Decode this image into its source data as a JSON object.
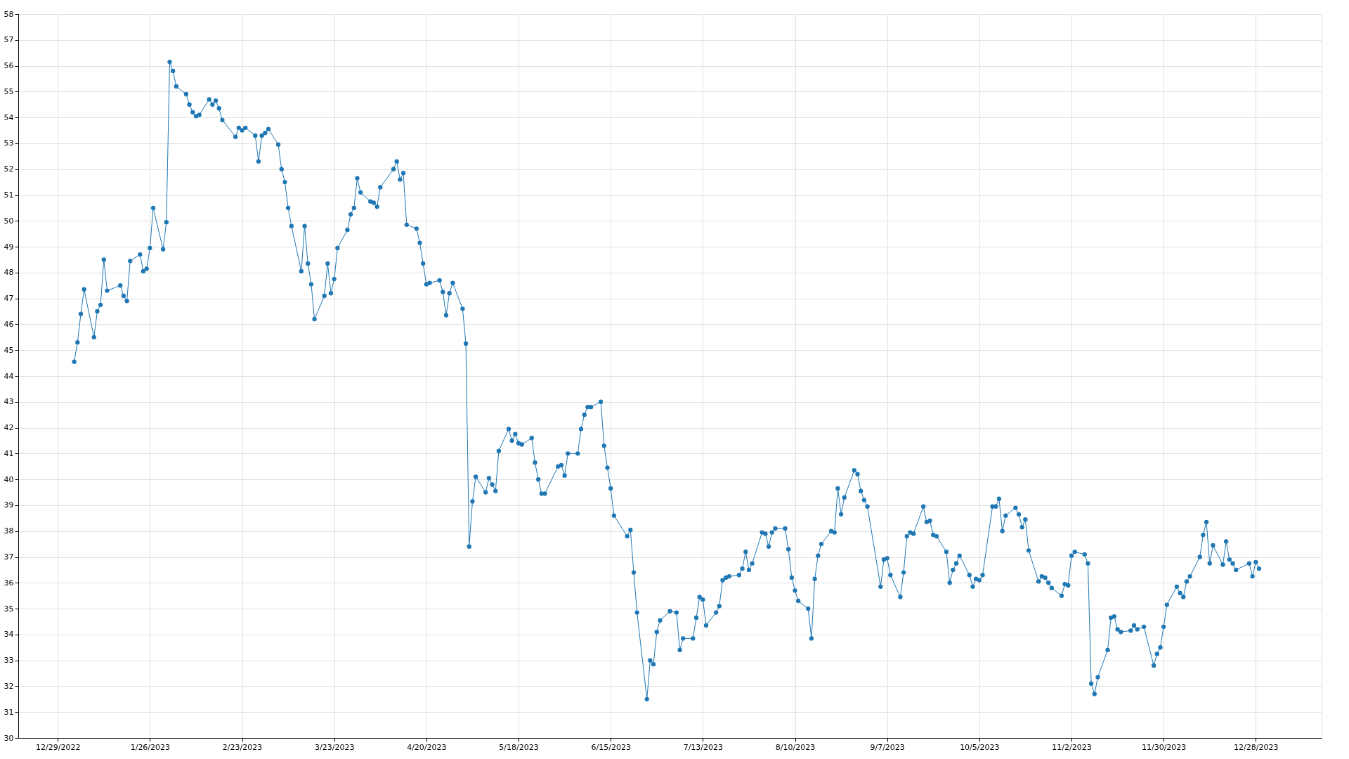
{
  "chart_data": {
    "type": "line",
    "x": [
      "2023-01-03",
      "2023-01-04",
      "2023-01-05",
      "2023-01-06",
      "2023-01-09",
      "2023-01-10",
      "2023-01-11",
      "2023-01-12",
      "2023-01-13",
      "2023-01-17",
      "2023-01-18",
      "2023-01-19",
      "2023-01-20",
      "2023-01-23",
      "2023-01-24",
      "2023-01-25",
      "2023-01-26",
      "2023-01-27",
      "2023-01-30",
      "2023-01-31",
      "2023-02-01",
      "2023-02-02",
      "2023-02-03",
      "2023-02-06",
      "2023-02-07",
      "2023-02-08",
      "2023-02-09",
      "2023-02-10",
      "2023-02-13",
      "2023-02-14",
      "2023-02-15",
      "2023-02-16",
      "2023-02-17",
      "2023-02-21",
      "2023-02-22",
      "2023-02-23",
      "2023-02-24",
      "2023-02-27",
      "2023-02-28",
      "2023-03-01",
      "2023-03-02",
      "2023-03-03",
      "2023-03-06",
      "2023-03-07",
      "2023-03-08",
      "2023-03-09",
      "2023-03-10",
      "2023-03-13",
      "2023-03-14",
      "2023-03-15",
      "2023-03-16",
      "2023-03-17",
      "2023-03-20",
      "2023-03-21",
      "2023-03-22",
      "2023-03-23",
      "2023-03-24",
      "2023-03-27",
      "2023-03-28",
      "2023-03-29",
      "2023-03-30",
      "2023-03-31",
      "2023-04-03",
      "2023-04-04",
      "2023-04-05",
      "2023-04-06",
      "2023-04-10",
      "2023-04-11",
      "2023-04-12",
      "2023-04-13",
      "2023-04-14",
      "2023-04-17",
      "2023-04-18",
      "2023-04-19",
      "2023-04-20",
      "2023-04-21",
      "2023-04-24",
      "2023-04-25",
      "2023-04-26",
      "2023-04-27",
      "2023-04-28",
      "2023-05-01",
      "2023-05-02",
      "2023-05-03",
      "2023-05-04",
      "2023-05-05",
      "2023-05-08",
      "2023-05-09",
      "2023-05-10",
      "2023-05-11",
      "2023-05-12",
      "2023-05-15",
      "2023-05-16",
      "2023-05-17",
      "2023-05-18",
      "2023-05-19",
      "2023-05-22",
      "2023-05-23",
      "2023-05-24",
      "2023-05-25",
      "2023-05-26",
      "2023-05-30",
      "2023-05-31",
      "2023-06-01",
      "2023-06-02",
      "2023-06-05",
      "2023-06-06",
      "2023-06-07",
      "2023-06-08",
      "2023-06-09",
      "2023-06-12",
      "2023-06-13",
      "2023-06-14",
      "2023-06-15",
      "2023-06-16",
      "2023-06-20",
      "2023-06-21",
      "2023-06-22",
      "2023-06-23",
      "2023-06-26",
      "2023-06-27",
      "2023-06-28",
      "2023-06-29",
      "2023-06-30",
      "2023-07-03",
      "2023-07-05",
      "2023-07-06",
      "2023-07-07",
      "2023-07-10",
      "2023-07-11",
      "2023-07-12",
      "2023-07-13",
      "2023-07-14",
      "2023-07-17",
      "2023-07-18",
      "2023-07-19",
      "2023-07-20",
      "2023-07-21",
      "2023-07-24",
      "2023-07-25",
      "2023-07-26",
      "2023-07-27",
      "2023-07-28",
      "2023-07-31",
      "2023-08-01",
      "2023-08-02",
      "2023-08-03",
      "2023-08-04",
      "2023-08-07",
      "2023-08-08",
      "2023-08-09",
      "2023-08-10",
      "2023-08-11",
      "2023-08-14",
      "2023-08-15",
      "2023-08-16",
      "2023-08-17",
      "2023-08-18",
      "2023-08-21",
      "2023-08-22",
      "2023-08-23",
      "2023-08-24",
      "2023-08-25",
      "2023-08-28",
      "2023-08-29",
      "2023-08-30",
      "2023-08-31",
      "2023-09-01",
      "2023-09-05",
      "2023-09-06",
      "2023-09-07",
      "2023-09-08",
      "2023-09-11",
      "2023-09-12",
      "2023-09-13",
      "2023-09-14",
      "2023-09-15",
      "2023-09-18",
      "2023-09-19",
      "2023-09-20",
      "2023-09-21",
      "2023-09-22",
      "2023-09-25",
      "2023-09-26",
      "2023-09-27",
      "2023-09-28",
      "2023-09-29",
      "2023-10-02",
      "2023-10-03",
      "2023-10-04",
      "2023-10-05",
      "2023-10-06",
      "2023-10-09",
      "2023-10-10",
      "2023-10-11",
      "2023-10-12",
      "2023-10-13",
      "2023-10-16",
      "2023-10-17",
      "2023-10-18",
      "2023-10-19",
      "2023-10-20",
      "2023-10-23",
      "2023-10-24",
      "2023-10-25",
      "2023-10-26",
      "2023-10-27",
      "2023-10-30",
      "2023-10-31",
      "2023-11-01",
      "2023-11-02",
      "2023-11-03",
      "2023-11-06",
      "2023-11-07",
      "2023-11-08",
      "2023-11-09",
      "2023-11-10",
      "2023-11-13",
      "2023-11-14",
      "2023-11-15",
      "2023-11-16",
      "2023-11-17",
      "2023-11-20",
      "2023-11-21",
      "2023-11-22",
      "2023-11-24",
      "2023-11-27",
      "2023-11-28",
      "2023-11-29",
      "2023-11-30",
      "2023-12-01",
      "2023-12-04",
      "2023-12-05",
      "2023-12-06",
      "2023-12-07",
      "2023-12-08",
      "2023-12-11",
      "2023-12-12",
      "2023-12-13",
      "2023-12-14",
      "2023-12-15",
      "2023-12-18",
      "2023-12-19",
      "2023-12-20",
      "2023-12-21",
      "2023-12-22",
      "2023-12-26",
      "2023-12-27",
      "2023-12-28",
      "2023-12-29"
    ],
    "series": [
      {
        "color": "#1f77b4",
        "values": [
          44.55,
          45.3,
          46.4,
          47.35,
          45.5,
          46.5,
          46.75,
          48.5,
          47.3,
          47.5,
          47.1,
          46.9,
          48.45,
          48.7,
          48.05,
          48.15,
          48.95,
          50.5,
          48.9,
          49.95,
          56.15,
          55.8,
          55.2,
          54.9,
          54.5,
          54.2,
          54.05,
          54.1,
          54.7,
          54.5,
          54.65,
          54.35,
          53.9,
          53.25,
          53.6,
          53.5,
          53.6,
          53.3,
          52.3,
          53.3,
          53.4,
          53.55,
          52.95,
          52.0,
          51.5,
          50.5,
          49.8,
          48.05,
          49.8,
          48.35,
          47.55,
          46.2,
          47.1,
          48.35,
          47.2,
          47.75,
          48.95,
          49.65,
          50.25,
          50.5,
          51.65,
          51.1,
          50.75,
          50.7,
          50.55,
          51.3,
          52.0,
          52.3,
          51.6,
          51.85,
          49.85,
          49.7,
          49.15,
          48.35,
          47.55,
          47.6,
          47.7,
          47.25,
          46.35,
          47.2,
          47.6,
          46.6,
          45.25,
          37.4,
          39.15,
          40.1,
          39.5,
          40.05,
          39.8,
          39.55,
          41.1,
          41.95,
          41.5,
          41.75,
          41.4,
          41.35,
          41.6,
          40.65,
          40.0,
          39.45,
          39.45,
          40.5,
          40.55,
          40.15,
          41.0,
          41.0,
          41.95,
          42.5,
          42.8,
          42.8,
          43.0,
          41.3,
          40.45,
          39.65,
          38.6,
          37.8,
          38.05,
          36.4,
          34.85,
          31.5,
          33.0,
          32.85,
          34.1,
          34.55,
          34.9,
          34.85,
          33.4,
          33.85,
          33.85,
          34.65,
          35.45,
          35.35,
          34.35,
          34.85,
          35.1,
          36.1,
          36.2,
          36.25,
          36.3,
          36.55,
          37.2,
          36.5,
          36.75,
          37.95,
          37.9,
          37.4,
          37.95,
          38.1,
          38.1,
          37.3,
          36.2,
          35.7,
          35.3,
          35.0,
          33.85,
          36.15,
          37.05,
          37.5,
          38.0,
          37.95,
          39.65,
          38.65,
          39.3,
          40.35,
          40.2,
          39.55,
          39.2,
          38.95,
          35.85,
          36.9,
          36.95,
          36.3,
          35.45,
          36.4,
          37.8,
          37.95,
          37.9,
          38.95,
          38.35,
          38.4,
          37.85,
          37.8,
          37.2,
          36.0,
          36.5,
          36.75,
          37.05,
          36.3,
          35.85,
          36.15,
          36.1,
          36.3,
          38.95,
          38.95,
          39.25,
          38.0,
          38.6,
          38.9,
          38.65,
          38.15,
          38.45,
          37.25,
          36.05,
          36.25,
          36.2,
          36.0,
          35.8,
          35.5,
          35.95,
          35.9,
          37.05,
          37.2,
          37.1,
          36.75,
          32.1,
          31.7,
          32.35,
          33.4,
          34.65,
          34.7,
          34.2,
          34.1,
          34.15,
          34.35,
          34.2,
          34.3,
          32.8,
          33.25,
          33.5,
          34.3,
          35.15,
          35.85,
          35.6,
          35.45,
          36.05,
          36.25,
          37.0,
          37.85,
          38.35,
          36.75,
          37.45,
          36.7,
          37.6,
          36.9,
          36.75,
          36.5,
          36.75,
          36.25,
          36.8,
          36.55
        ]
      }
    ],
    "xlim": [
      "2022-12-17",
      "2024-01-17"
    ],
    "xticks": [
      {
        "value": "2022-12-29",
        "label": "12/29/2022"
      },
      {
        "value": "2023-01-26",
        "label": "1/26/2023"
      },
      {
        "value": "2023-02-23",
        "label": "2/23/2023"
      },
      {
        "value": "2023-03-23",
        "label": "3/23/2023"
      },
      {
        "value": "2023-04-20",
        "label": "4/20/2023"
      },
      {
        "value": "2023-05-18",
        "label": "5/18/2023"
      },
      {
        "value": "2023-06-15",
        "label": "6/15/2023"
      },
      {
        "value": "2023-07-13",
        "label": "7/13/2023"
      },
      {
        "value": "2023-08-10",
        "label": "8/10/2023"
      },
      {
        "value": "2023-09-07",
        "label": "9/7/2023"
      },
      {
        "value": "2023-10-05",
        "label": "10/5/2023"
      },
      {
        "value": "2023-11-02",
        "label": "11/2/2023"
      },
      {
        "value": "2023-11-30",
        "label": "11/30/2023"
      },
      {
        "value": "2023-12-28",
        "label": "12/28/2023"
      }
    ],
    "ylim": [
      30,
      58
    ],
    "yticks": [
      30,
      31,
      32,
      33,
      34,
      35,
      36,
      37,
      38,
      39,
      40,
      41,
      42,
      43,
      44,
      45,
      46,
      47,
      48,
      49,
      50,
      51,
      52,
      53,
      54,
      55,
      56,
      57,
      58
    ],
    "grid": true,
    "marker": "circle",
    "line_style": "solid"
  }
}
